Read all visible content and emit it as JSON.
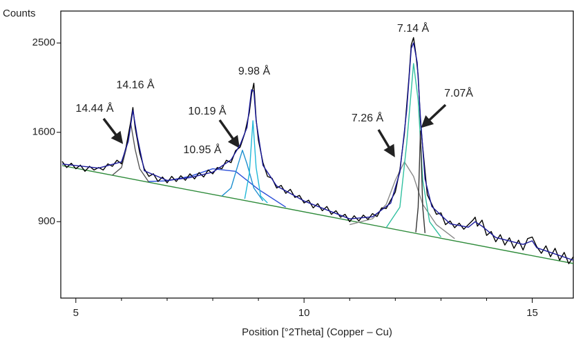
{
  "chart_data": {
    "type": "line",
    "y_scale": "sqrt",
    "ylabel": "Counts",
    "xlabel": "Position [°2Theta] (Copper – Cu)",
    "xlim": [
      4.67,
      15.9
    ],
    "ylim": [
      460,
      2870
    ],
    "xticks": [
      5,
      10,
      15
    ],
    "xminorticks": [
      6,
      7,
      8,
      9,
      11,
      12,
      13,
      14
    ],
    "yticks": [
      900,
      1600,
      2500
    ],
    "annotations": [
      "14.44 Å",
      "14.16 Å",
      "10.95 Å",
      "10.19 Å",
      "9.98 Å",
      "7.26 Å",
      "7.14 Å",
      "7.07Å"
    ],
    "series": [
      {
        "color": "#2e8b3a",
        "x": [
          4.7,
          7,
          9,
          11,
          13,
          15.9
        ],
        "values": [
          1316,
          1157,
          1029,
          907,
          792,
          641
        ]
      },
      {
        "color": "#555555",
        "x": [
          5.8,
          6.0,
          6.1,
          6.2,
          6.3,
          6.4,
          6.6
        ],
        "values": [
          1239,
          1300,
          1450,
          1688,
          1450,
          1290,
          1185
        ]
      },
      {
        "color": "#2b4fd8",
        "x": [
          6.6,
          7.0,
          7.5,
          8.0,
          8.5,
          9.0,
          9.6
        ],
        "values": [
          1190,
          1195,
          1230,
          1290,
          1270,
          1130,
          1000
        ]
      },
      {
        "color": "#1e90d0",
        "x": [
          8.2,
          8.4,
          8.55,
          8.65,
          8.75,
          8.9,
          9.1
        ],
        "values": [
          1080,
          1140,
          1320,
          1444,
          1330,
          1140,
          1045
        ]
      },
      {
        "color": "#20b8d8",
        "x": [
          8.7,
          8.8,
          8.88,
          8.95,
          9.05,
          9.2
        ],
        "values": [
          1060,
          1250,
          1706,
          1300,
          1080,
          1030
        ]
      },
      {
        "color": "#888888",
        "x": [
          11.0,
          11.5,
          11.8,
          12.0,
          12.2,
          12.4,
          12.6,
          12.9,
          13.3
        ],
        "values": [
          880,
          920,
          1020,
          1200,
          1346,
          1230,
          1020,
          880,
          790
        ]
      },
      {
        "color": "#30c0a0",
        "x": [
          11.8,
          12.1,
          12.25,
          12.4,
          12.5,
          12.6,
          12.75,
          13.0
        ],
        "values": [
          860,
          1000,
          1500,
          2275,
          1900,
          1200,
          900,
          800
        ]
      },
      {
        "color": "#333333",
        "x": [
          12.45,
          12.5,
          12.55,
          12.6,
          12.65
        ],
        "values": [
          830,
          1000,
          1612,
          1000,
          825
        ]
      },
      {
        "color": "#000000",
        "x": [
          4.7,
          4.8,
          4.9,
          5.0,
          5.1,
          5.2,
          5.3,
          5.4,
          5.5,
          5.6,
          5.7,
          5.8,
          5.9,
          6.0,
          6.1,
          6.2,
          6.25,
          6.3,
          6.4,
          6.5,
          6.6,
          6.7,
          6.8,
          6.9,
          7.0,
          7.1,
          7.2,
          7.3,
          7.4,
          7.5,
          7.6,
          7.7,
          7.8,
          7.9,
          8.0,
          8.1,
          8.2,
          8.3,
          8.4,
          8.5,
          8.6,
          8.7,
          8.8,
          8.85,
          8.9,
          8.95,
          9.0,
          9.1,
          9.2,
          9.3,
          9.4,
          9.5,
          9.6,
          9.7,
          9.8,
          9.9,
          10.0,
          10.1,
          10.2,
          10.3,
          10.4,
          10.5,
          10.6,
          10.7,
          10.8,
          10.9,
          11.0,
          11.1,
          11.2,
          11.3,
          11.4,
          11.5,
          11.6,
          11.7,
          11.8,
          11.9,
          12.0,
          12.1,
          12.2,
          12.3,
          12.35,
          12.4,
          12.45,
          12.5,
          12.55,
          12.6,
          12.7,
          12.8,
          12.9,
          13.0,
          13.1,
          13.2,
          13.3,
          13.4,
          13.5,
          13.6,
          13.7,
          13.75,
          13.8,
          13.9,
          14.0,
          14.1,
          14.2,
          14.3,
          14.4,
          14.5,
          14.6,
          14.7,
          14.8,
          14.9,
          15.0,
          15.1,
          15.2,
          15.3,
          15.4,
          15.5,
          15.6,
          15.7,
          15.8,
          15.9
        ],
        "values": [
          1350,
          1300,
          1335,
          1290,
          1320,
          1270,
          1310,
          1280,
          1300,
          1280,
          1330,
          1310,
          1360,
          1330,
          1470,
          1690,
          1830,
          1640,
          1420,
          1290,
          1230,
          1250,
          1190,
          1225,
          1180,
          1230,
          1190,
          1235,
          1200,
          1250,
          1210,
          1260,
          1225,
          1280,
          1250,
          1300,
          1290,
          1360,
          1340,
          1440,
          1470,
          1590,
          1780,
          1960,
          2070,
          1720,
          1530,
          1340,
          1230,
          1215,
          1140,
          1160,
          1100,
          1130,
          1070,
          1085,
          1030,
          1050,
          995,
          1025,
          975,
          1005,
          950,
          975,
          930,
          950,
          900,
          940,
          905,
          945,
          915,
          955,
          935,
          995,
          990,
          1050,
          1110,
          1280,
          1590,
          2130,
          2480,
          2560,
          2380,
          2150,
          1700,
          1470,
          1090,
          1020,
          950,
          960,
          880,
          905,
          860,
          890,
          850,
          880,
          910,
          930,
          870,
          910,
          810,
          835,
          770,
          815,
          750,
          795,
          730,
          780,
          720,
          790,
          800,
          740,
          700,
          745,
          680,
          730,
          660,
          705,
          640,
          680
        ]
      },
      {
        "color": "#1a1a9c",
        "x": [
          4.7,
          5.5,
          6.0,
          6.15,
          6.25,
          6.35,
          6.5,
          7.0,
          7.5,
          8.0,
          8.4,
          8.6,
          8.75,
          8.85,
          8.9,
          8.95,
          9.1,
          9.4,
          10.0,
          11.0,
          11.5,
          11.9,
          12.1,
          12.25,
          12.35,
          12.4,
          12.48,
          12.55,
          12.65,
          12.8,
          13.2,
          13.6,
          13.75,
          13.9,
          14.2,
          14.8,
          15.0,
          15.1,
          15.9
        ],
        "values": [
          1329,
          1296,
          1346,
          1521,
          1803,
          1551,
          1274,
          1198,
          1220,
          1263,
          1363,
          1491,
          1643,
          2004,
          1990,
          1706,
          1318,
          1156,
          1044,
          919,
          933,
          1029,
          1263,
          1803,
          2439,
          2500,
          2289,
          1738,
          1209,
          1004,
          886,
          863,
          900,
          870,
          797,
          754,
          776,
          733,
          660
        ]
      }
    ]
  }
}
